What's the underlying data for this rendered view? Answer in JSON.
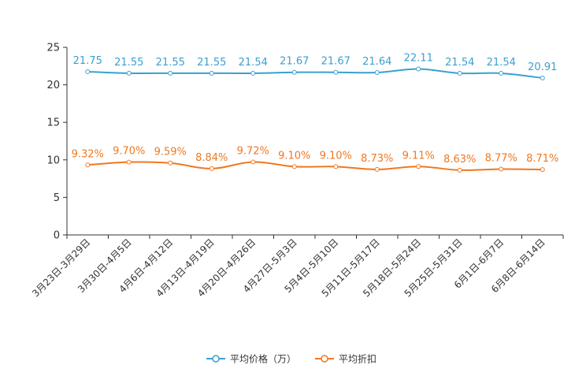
{
  "chart_data": {
    "type": "line",
    "categories": [
      "3月23日-3月29日",
      "3月30日-4月5日",
      "4月6日-4月12日",
      "4月13日-4月19日",
      "4月20日-4月26日",
      "4月27日-5月3日",
      "5月4日-5月10日",
      "5月11日-5月17日",
      "5月18日-5月24日",
      "5月25日-5月31日",
      "6月1日-6月7日",
      "6月8日-6月14日"
    ],
    "ylim": [
      0,
      25
    ],
    "yticks": [
      0,
      5,
      10,
      15,
      20,
      25
    ],
    "series": [
      {
        "name": "平均价格（万）",
        "color": "#3aa0d0",
        "values": [
          21.75,
          21.55,
          21.55,
          21.55,
          21.54,
          21.67,
          21.67,
          21.64,
          22.11,
          21.54,
          21.54,
          20.91
        ],
        "labels": [
          "21.75",
          "21.55",
          "21.55",
          "21.55",
          "21.54",
          "21.67",
          "21.67",
          "21.64",
          "22.11",
          "21.54",
          "21.54",
          "20.91"
        ]
      },
      {
        "name": "平均折扣",
        "color": "#f07820",
        "values": [
          9.32,
          9.7,
          9.59,
          8.84,
          9.72,
          9.1,
          9.1,
          8.73,
          9.11,
          8.63,
          8.77,
          8.71
        ],
        "labels": [
          "9.32%",
          "9.70%",
          "9.59%",
          "8.84%",
          "9.72%",
          "9.10%",
          "9.10%",
          "8.73%",
          "9.11%",
          "8.63%",
          "8.77%",
          "8.71%"
        ]
      }
    ],
    "legend_position": "bottom-center"
  }
}
